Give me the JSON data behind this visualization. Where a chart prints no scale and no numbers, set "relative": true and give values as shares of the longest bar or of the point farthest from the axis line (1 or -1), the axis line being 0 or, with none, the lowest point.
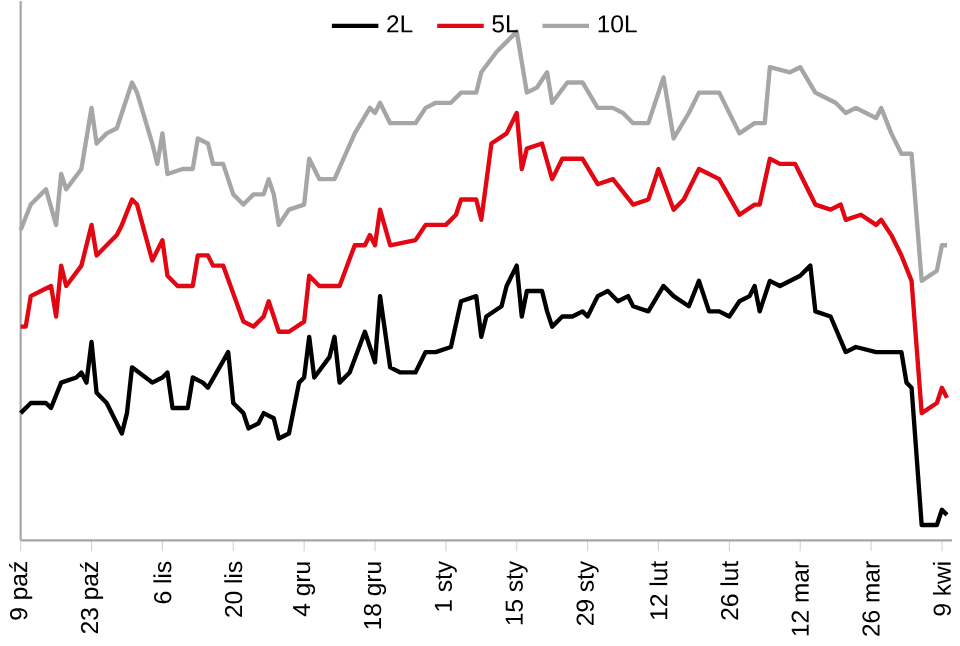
{
  "chart_data": {
    "type": "line",
    "relative": true,
    "legend": "top",
    "categories": [
      "9 paź",
      null,
      null,
      null,
      null,
      null,
      null,
      null,
      null,
      null,
      null,
      null,
      null,
      null,
      "23 paź",
      null,
      null,
      null,
      null,
      null,
      null,
      null,
      null,
      null,
      null,
      null,
      null,
      null,
      "6 lis",
      null,
      null,
      null,
      null,
      null,
      null,
      null,
      null,
      null,
      null,
      null,
      null,
      null,
      "20 lis",
      null,
      null,
      null,
      null,
      null,
      null,
      null,
      null,
      null,
      null,
      null,
      null,
      null,
      "4 gru",
      null,
      null,
      null,
      null,
      null,
      null,
      null,
      null,
      null,
      null,
      null,
      null,
      null,
      "18 gru",
      null,
      null,
      null,
      null,
      null,
      null,
      null,
      null,
      null,
      null,
      null,
      null,
      null,
      "1 sty",
      null,
      null,
      null,
      null,
      null,
      null,
      null,
      null,
      null,
      null,
      null,
      null,
      null,
      "15 sty",
      null,
      null,
      null,
      null,
      null,
      null,
      null,
      null,
      null,
      null,
      null,
      null,
      null,
      "29 sty",
      null,
      null,
      null,
      null,
      null,
      null,
      null,
      null,
      null,
      null,
      null,
      null,
      null,
      "12 lut",
      null,
      null,
      null,
      null,
      null,
      null,
      null,
      null,
      null,
      null,
      null,
      null,
      null,
      "26 lut",
      null,
      null,
      null,
      null,
      null,
      null,
      null,
      null,
      null,
      null,
      null,
      null,
      null,
      "12 mar",
      null,
      null,
      null,
      null,
      null,
      null,
      null,
      null,
      null,
      null,
      null,
      null,
      null,
      "26 mar",
      null,
      null,
      null,
      null,
      null,
      null,
      null,
      null,
      null,
      null,
      null,
      null,
      null,
      "9 kwi",
      null
    ],
    "series": [
      {
        "name": "2L",
        "color": "#000000",
        "values": [
          0.25,
          null,
          0.27,
          null,
          null,
          0.27,
          0.26,
          null,
          0.31,
          null,
          null,
          0.32,
          0.33,
          0.31,
          0.39,
          0.29,
          null,
          0.27,
          null,
          null,
          0.21,
          0.25,
          0.34,
          null,
          null,
          null,
          0.31,
          null,
          0.32,
          0.33,
          0.26,
          null,
          null,
          0.26,
          0.32,
          null,
          0.31,
          0.3,
          null,
          null,
          null,
          0.37,
          0.27,
          null,
          0.25,
          0.22,
          null,
          0.23,
          0.25,
          null,
          0.24,
          0.2,
          null,
          0.21,
          null,
          0.31,
          0.32,
          0.4,
          0.32,
          null,
          null,
          0.36,
          0.4,
          0.31,
          null,
          0.33,
          null,
          null,
          0.41,
          null,
          0.35,
          0.48,
          null,
          0.34,
          null,
          0.33,
          null,
          null,
          0.33,
          null,
          0.37,
          null,
          0.37,
          null,
          null,
          0.38,
          null,
          0.47,
          null,
          null,
          0.48,
          0.4,
          0.44,
          null,
          null,
          0.46,
          0.5,
          null,
          0.54,
          0.44,
          0.49,
          null,
          null,
          0.49,
          0.45,
          0.42,
          null,
          0.44,
          null,
          0.44,
          null,
          0.45,
          0.44,
          null,
          0.48,
          null,
          0.49,
          null,
          0.47,
          null,
          0.48,
          0.46,
          null,
          null,
          0.45,
          null,
          null,
          0.5,
          null,
          0.48,
          null,
          null,
          0.46,
          null,
          0.51,
          null,
          0.45,
          null,
          0.45,
          null,
          0.44,
          null,
          0.47,
          null,
          0.48,
          0.5,
          0.45,
          null,
          0.51,
          null,
          0.5,
          null,
          null,
          null,
          0.52,
          null,
          0.54,
          0.45,
          null,
          null,
          0.44,
          null,
          null,
          0.37,
          null,
          0.38,
          null,
          null,
          null,
          0.37,
          null,
          0.37,
          null,
          null,
          0.37,
          0.31,
          0.3,
          null,
          0.03,
          null,
          null,
          0.03,
          0.06,
          0.05
        ]
      },
      {
        "name": "5L",
        "color": "#e30613",
        "values": [
          0.42,
          0.42,
          0.48,
          null,
          0.49,
          null,
          0.5,
          0.44,
          0.54,
          0.5,
          null,
          null,
          0.54,
          0.58,
          0.62,
          0.56,
          null,
          0.58,
          null,
          0.6,
          0.62,
          null,
          0.67,
          0.66,
          null,
          null,
          0.55,
          null,
          0.59,
          0.52,
          null,
          0.5,
          null,
          null,
          0.5,
          0.56,
          null,
          0.56,
          0.54,
          null,
          0.54,
          null,
          null,
          null,
          0.43,
          null,
          0.42,
          null,
          0.44,
          0.47,
          0.44,
          0.41,
          null,
          0.41,
          null,
          null,
          0.43,
          0.52,
          null,
          0.5,
          null,
          0.5,
          null,
          0.5,
          null,
          null,
          0.58,
          null,
          0.58,
          0.6,
          0.58,
          0.65,
          null,
          0.58,
          null,
          null,
          null,
          null,
          0.59,
          null,
          0.62,
          null,
          null,
          null,
          0.62,
          null,
          0.64,
          0.67,
          null,
          null,
          0.67,
          0.63,
          null,
          0.78,
          null,
          null,
          0.8,
          null,
          0.84,
          0.73,
          0.77,
          null,
          null,
          0.78,
          null,
          0.71,
          null,
          0.75,
          null,
          null,
          null,
          0.75,
          null,
          null,
          0.7,
          null,
          null,
          0.71,
          null,
          null,
          null,
          0.66,
          null,
          null,
          0.67,
          null,
          0.73,
          null,
          null,
          0.65,
          null,
          0.67,
          null,
          null,
          0.73,
          null,
          null,
          null,
          0.71,
          null,
          null,
          null,
          0.64,
          null,
          null,
          0.66,
          0.66,
          null,
          0.75,
          null,
          0.74,
          null,
          null,
          0.74,
          0.72,
          null,
          null,
          0.66,
          null,
          null,
          0.65,
          null,
          0.66,
          0.63,
          null,
          null,
          0.64,
          null,
          null,
          0.62,
          0.63,
          null,
          0.6,
          null,
          0.56,
          null,
          0.51,
          null,
          0.25,
          null,
          null,
          0.27,
          0.3,
          0.28
        ]
      },
      {
        "name": "10L",
        "color": "#a6a6a6",
        "values": [
          0.61,
          null,
          0.66,
          null,
          0.68,
          0.69,
          null,
          0.62,
          0.72,
          0.69,
          null,
          null,
          0.73,
          null,
          0.85,
          0.78,
          null,
          0.8,
          null,
          0.81,
          null,
          null,
          0.9,
          0.88,
          null,
          null,
          0.78,
          0.74,
          0.8,
          0.72,
          null,
          null,
          0.73,
          null,
          0.73,
          0.79,
          null,
          0.78,
          0.74,
          null,
          0.74,
          null,
          0.68,
          null,
          0.66,
          null,
          0.68,
          null,
          0.68,
          0.71,
          0.68,
          0.62,
          null,
          0.65,
          null,
          null,
          0.66,
          0.75,
          null,
          0.71,
          null,
          null,
          0.71,
          null,
          null,
          null,
          0.8,
          null,
          null,
          0.85,
          0.84,
          0.86,
          null,
          0.82,
          null,
          null,
          null,
          null,
          0.82,
          null,
          0.85,
          null,
          0.86,
          null,
          null,
          0.86,
          null,
          0.88,
          null,
          null,
          0.88,
          0.92,
          null,
          null,
          0.96,
          null,
          null,
          null,
          1,
          null,
          0.88,
          null,
          0.89,
          null,
          0.92,
          0.86,
          null,
          null,
          0.9,
          null,
          null,
          0.9,
          null,
          null,
          0.85,
          null,
          null,
          0.85,
          null,
          0.84,
          null,
          0.82,
          null,
          null,
          0.82,
          null,
          null,
          0.91,
          null,
          0.79,
          null,
          null,
          0.84,
          null,
          0.88,
          null,
          null,
          null,
          0.88,
          null,
          null,
          null,
          0.8,
          null,
          null,
          0.82,
          null,
          0.82,
          0.93,
          null,
          null,
          null,
          0.92,
          null,
          0.93,
          null,
          null,
          0.88,
          null,
          null,
          null,
          0.86,
          null,
          0.84,
          null,
          0.85,
          null,
          0.84,
          null,
          0.83,
          0.85,
          null,
          0.8,
          null,
          0.76,
          null,
          0.76,
          null,
          0.51,
          null,
          null,
          0.53,
          0.58,
          0.58
        ]
      }
    ]
  }
}
